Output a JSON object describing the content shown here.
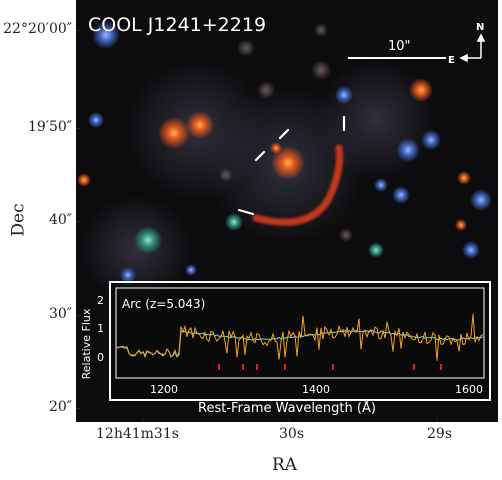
{
  "figure": {
    "title": "COOL J1241+2219",
    "scale_bar_label": "10\"",
    "compass_north": "N",
    "compass_east": "E",
    "y_axis_label": "Dec",
    "x_axis_label": "RA",
    "y_ticks": [
      "22°20′00″",
      "19′50″",
      "40″",
      "30″",
      "20″"
    ],
    "x_ticks": [
      "12h41m31s",
      "30s",
      "29s"
    ],
    "colors": {
      "background": "#0c0c0e",
      "arc": "#cc3a1c",
      "galaxy": "#d8541e",
      "spectrum_orange": "#f4a020",
      "spectrum_cyan": "#7fd4d8"
    }
  },
  "inset": {
    "label": "Arc (z=5.043)",
    "y_axis_label": "Relative Flux",
    "x_axis_label": "Rest-Frame Wavelength (Å)",
    "y_ticks": [
      "0",
      "1",
      "2"
    ],
    "x_ticks": [
      "1200",
      "1400",
      "1600"
    ]
  }
}
